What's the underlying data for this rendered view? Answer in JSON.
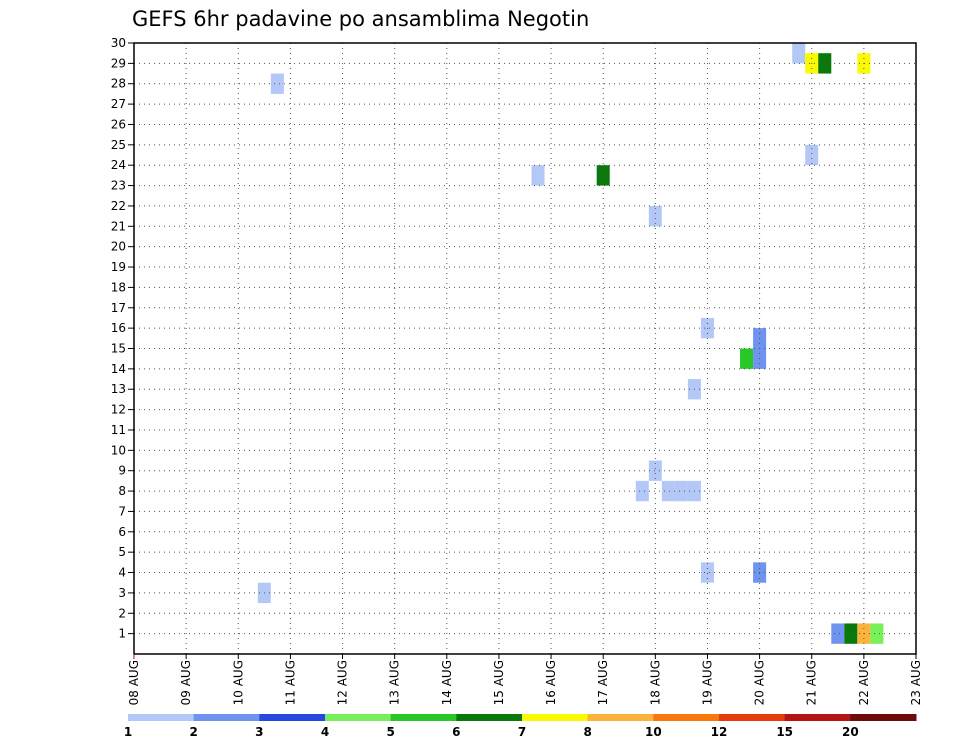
{
  "chart_data": {
    "type": "heatmap",
    "title": "GEFS 6hr padavine po ansamblima Negotin",
    "xlabel": "",
    "ylabel": "",
    "x_ticks": [
      "08 AUG",
      "09 AUG",
      "10 AUG",
      "11 AUG",
      "12 AUG",
      "13 AUG",
      "14 AUG",
      "15 AUG",
      "16 AUG",
      "17 AUG",
      "18 AUG",
      "19 AUG",
      "20 AUG",
      "21 AUG",
      "22 AUG",
      "23 AUG"
    ],
    "y_ticks": [
      "1",
      "2",
      "3",
      "4",
      "5",
      "6",
      "7",
      "8",
      "9",
      "10",
      "11",
      "12",
      "13",
      "14",
      "15",
      "16",
      "17",
      "18",
      "19",
      "20",
      "21",
      "22",
      "23",
      "24",
      "25",
      "26",
      "27",
      "28",
      "29",
      "30"
    ],
    "xlim_days": [
      0,
      15
    ],
    "ylim": [
      0,
      30
    ],
    "grid": true,
    "colorbar": {
      "levels": [
        "1",
        "2",
        "3",
        "4",
        "5",
        "6",
        "7",
        "8",
        "10",
        "12",
        "15",
        "20"
      ],
      "colors": [
        "#b4c8f8",
        "#6e94f0",
        "#2846e0",
        "#78f05a",
        "#28c828",
        "#0a780a",
        "#fafa00",
        "#fab43c",
        "#fa780a",
        "#e63c0a",
        "#b41414",
        "#6e0a0a"
      ]
    },
    "cells": [
      {
        "day": 2.5,
        "member": 3,
        "color": "#b4c8f8"
      },
      {
        "day": 2.75,
        "member": 28,
        "color": "#b4c8f8"
      },
      {
        "day": 7.75,
        "member": 23.5,
        "color": "#b4c8f8"
      },
      {
        "day": 9.0,
        "member": 23.5,
        "color": "#0a780a"
      },
      {
        "day": 9.75,
        "member": 8,
        "color": "#b4c8f8"
      },
      {
        "day": 10.0,
        "member": 9,
        "color": "#b4c8f8"
      },
      {
        "day": 10.0,
        "member": 21.5,
        "color": "#b4c8f8"
      },
      {
        "day": 10.25,
        "member": 8,
        "color": "#b4c8f8"
      },
      {
        "day": 10.5,
        "member": 8,
        "color": "#b4c8f8"
      },
      {
        "day": 10.75,
        "member": 8,
        "color": "#b4c8f8"
      },
      {
        "day": 10.75,
        "member": 13,
        "color": "#b4c8f8"
      },
      {
        "day": 11.0,
        "member": 4,
        "color": "#b4c8f8"
      },
      {
        "day": 11.0,
        "member": 16,
        "color": "#b4c8f8"
      },
      {
        "day": 11.75,
        "member": 14.5,
        "color": "#28c828"
      },
      {
        "day": 12.0,
        "member": 4,
        "color": "#6e94f0"
      },
      {
        "day": 12.0,
        "member": 14.5,
        "color": "#6e94f0"
      },
      {
        "day": 12.0,
        "member": 15.5,
        "color": "#6e94f0"
      },
      {
        "day": 12.75,
        "member": 29.5,
        "color": "#b4c8f8"
      },
      {
        "day": 13.0,
        "member": 24.5,
        "color": "#b4c8f8"
      },
      {
        "day": 13.0,
        "member": 29,
        "color": "#fafa00"
      },
      {
        "day": 13.25,
        "member": 29,
        "color": "#0a780a"
      },
      {
        "day": 13.5,
        "member": 1,
        "color": "#6e94f0"
      },
      {
        "day": 13.75,
        "member": 1,
        "color": "#0a780a"
      },
      {
        "day": 14.0,
        "member": 1,
        "color": "#fab43c"
      },
      {
        "day": 14.0,
        "member": 29,
        "color": "#fafa00"
      },
      {
        "day": 14.25,
        "member": 1,
        "color": "#78f05a"
      }
    ]
  }
}
